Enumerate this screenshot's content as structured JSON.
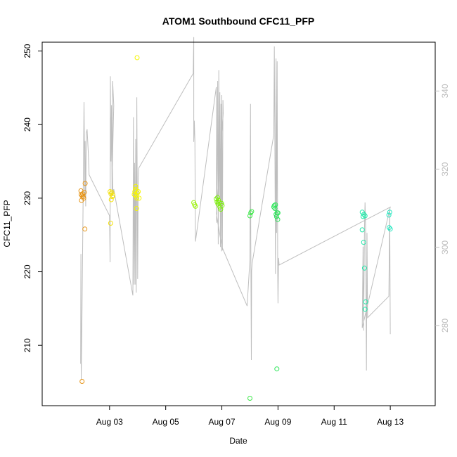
{
  "chart_data": {
    "type": "scatter",
    "title": "ATOM1 Southbound CFC11_PFP",
    "xlabel": "Date",
    "ylabel": "CFC11_PFP",
    "xlim": [
      0.6,
      14.6
    ],
    "ylim": [
      201.8,
      251.2
    ],
    "y2lim": [
      259.5,
      352.5
    ],
    "x_ticks": [
      {
        "v": 3,
        "label": "Aug 03"
      },
      {
        "v": 5,
        "label": "Aug 05"
      },
      {
        "v": 7,
        "label": "Aug 07"
      },
      {
        "v": 9,
        "label": "Aug 09"
      },
      {
        "v": 11,
        "label": "Aug 11"
      },
      {
        "v": 13,
        "label": "Aug 13"
      }
    ],
    "y_ticks": [
      210,
      220,
      230,
      240,
      250
    ],
    "y2_ticks": [
      280,
      300,
      320,
      340
    ],
    "grid": false,
    "legend": "none",
    "line_color": "#bebebe",
    "series": [
      {
        "values": [
          {
            "x": 1.98,
            "y": 231.0,
            "color": "#e69519"
          },
          {
            "x": 1.99,
            "y": 230.5,
            "color": "#e69519"
          },
          {
            "x": 2.0,
            "y": 229.7,
            "color": "#e69519"
          },
          {
            "x": 2.02,
            "y": 230.3,
            "color": "#e69519"
          },
          {
            "x": 2.04,
            "y": 230.6,
            "color": "#e69519"
          },
          {
            "x": 2.06,
            "y": 230.2,
            "color": "#e69519"
          },
          {
            "x": 2.08,
            "y": 230.0,
            "color": "#e69519"
          },
          {
            "x": 2.1,
            "y": 230.8,
            "color": "#e69519"
          },
          {
            "x": 2.13,
            "y": 232.0,
            "color": "#e69519"
          },
          {
            "x": 2.12,
            "y": 225.8,
            "color": "#e69519"
          },
          {
            "x": 2.02,
            "y": 205.1,
            "color": "#e69519"
          },
          {
            "x": 3.02,
            "y": 230.9,
            "color": "#f5e20b"
          },
          {
            "x": 3.05,
            "y": 230.6,
            "color": "#f5e20b"
          },
          {
            "x": 3.08,
            "y": 230.8,
            "color": "#f5e20b"
          },
          {
            "x": 3.1,
            "y": 230.2,
            "color": "#f5e20b"
          },
          {
            "x": 3.06,
            "y": 229.8,
            "color": "#f5e20b"
          },
          {
            "x": 3.12,
            "y": 230.4,
            "color": "#f5e20b"
          },
          {
            "x": 3.04,
            "y": 226.6,
            "color": "#f5e20b"
          },
          {
            "x": 3.88,
            "y": 230.5,
            "color": "#f5f500"
          },
          {
            "x": 3.9,
            "y": 230.9,
            "color": "#f5f500"
          },
          {
            "x": 3.92,
            "y": 231.2,
            "color": "#f5f500"
          },
          {
            "x": 3.95,
            "y": 230.3,
            "color": "#f5f500"
          },
          {
            "x": 3.97,
            "y": 230.0,
            "color": "#f5f500"
          },
          {
            "x": 3.99,
            "y": 230.7,
            "color": "#f5f500"
          },
          {
            "x": 4.02,
            "y": 230.9,
            "color": "#f5f500"
          },
          {
            "x": 4.05,
            "y": 230.0,
            "color": "#f5f500"
          },
          {
            "x": 3.93,
            "y": 231.6,
            "color": "#f5f500"
          },
          {
            "x": 3.96,
            "y": 228.6,
            "color": "#f5f500"
          },
          {
            "x": 3.98,
            "y": 249.1,
            "color": "#f5f500"
          },
          {
            "x": 6.0,
            "y": 229.4,
            "color": "#9ef50a"
          },
          {
            "x": 6.03,
            "y": 229.1,
            "color": "#9ef50a"
          },
          {
            "x": 6.06,
            "y": 228.9,
            "color": "#9ef50a"
          },
          {
            "x": 6.8,
            "y": 229.9,
            "color": "#7ef00c"
          },
          {
            "x": 6.83,
            "y": 229.5,
            "color": "#7ef00c"
          },
          {
            "x": 6.86,
            "y": 229.2,
            "color": "#7ef00c"
          },
          {
            "x": 6.88,
            "y": 229.7,
            "color": "#7ef00c"
          },
          {
            "x": 6.9,
            "y": 229.4,
            "color": "#7ef00c"
          },
          {
            "x": 6.93,
            "y": 228.8,
            "color": "#7ef00c"
          },
          {
            "x": 6.96,
            "y": 228.5,
            "color": "#7ef00c"
          },
          {
            "x": 6.99,
            "y": 229.3,
            "color": "#7ef00c"
          },
          {
            "x": 7.01,
            "y": 229.0,
            "color": "#7ef00c"
          },
          {
            "x": 6.85,
            "y": 230.1,
            "color": "#7ef00c"
          },
          {
            "x": 8.0,
            "y": 227.6,
            "color": "#3ee84a"
          },
          {
            "x": 8.03,
            "y": 228.0,
            "color": "#3ee84a"
          },
          {
            "x": 8.06,
            "y": 228.2,
            "color": "#3ee84a"
          },
          {
            "x": 8.0,
            "y": 202.8,
            "color": "#3ee84a"
          },
          {
            "x": 8.85,
            "y": 228.8,
            "color": "#2ee65a"
          },
          {
            "x": 8.87,
            "y": 229.0,
            "color": "#2ee65a"
          },
          {
            "x": 8.89,
            "y": 228.6,
            "color": "#2ee65a"
          },
          {
            "x": 8.91,
            "y": 229.1,
            "color": "#2ee65a"
          },
          {
            "x": 8.93,
            "y": 227.8,
            "color": "#2ee65a"
          },
          {
            "x": 8.95,
            "y": 227.5,
            "color": "#2ee65a"
          },
          {
            "x": 8.97,
            "y": 228.0,
            "color": "#2ee65a"
          },
          {
            "x": 8.99,
            "y": 227.1,
            "color": "#2ee65a"
          },
          {
            "x": 9.0,
            "y": 228.0,
            "color": "#2ee65a"
          },
          {
            "x": 8.96,
            "y": 206.8,
            "color": "#2ee65a"
          },
          {
            "x": 12.0,
            "y": 228.1,
            "color": "#1ee8a8"
          },
          {
            "x": 12.03,
            "y": 227.5,
            "color": "#1ee8a8"
          },
          {
            "x": 12.06,
            "y": 227.8,
            "color": "#1ee8a8"
          },
          {
            "x": 12.1,
            "y": 227.6,
            "color": "#1ee8a8"
          },
          {
            "x": 12.0,
            "y": 225.7,
            "color": "#1ee8a8"
          },
          {
            "x": 12.05,
            "y": 224.0,
            "color": "#1ee8a8"
          },
          {
            "x": 12.08,
            "y": 220.5,
            "color": "#1ee8a8"
          },
          {
            "x": 12.12,
            "y": 215.9,
            "color": "#1ee8a8"
          },
          {
            "x": 12.1,
            "y": 214.9,
            "color": "#1ee8a8"
          },
          {
            "x": 12.95,
            "y": 227.7,
            "color": "#22e8c0"
          },
          {
            "x": 12.98,
            "y": 228.1,
            "color": "#22e8c0"
          },
          {
            "x": 12.96,
            "y": 226.0,
            "color": "#22e8c0"
          },
          {
            "x": 13.0,
            "y": 225.8,
            "color": "#22e8c0"
          }
        ]
      }
    ],
    "line_trace": [
      [
        1.97,
        270.2
      ],
      [
        1.98,
        298.3
      ],
      [
        1.99,
        266.1
      ],
      [
        2.02,
        284.1
      ],
      [
        2.06,
        313.7
      ],
      [
        2.09,
        337.2
      ],
      [
        2.12,
        313.2
      ],
      [
        2.13,
        327.2
      ],
      [
        2.15,
        310.5
      ],
      [
        2.17,
        329.3
      ],
      [
        2.2,
        330.2
      ],
      [
        2.24,
        324.6
      ],
      [
        2.27,
        318.6
      ],
      [
        3.0,
        308.1
      ],
      [
        3.02,
        296.2
      ],
      [
        3.03,
        343.8
      ],
      [
        3.05,
        322.0
      ],
      [
        3.07,
        336.4
      ],
      [
        3.09,
        313.2
      ],
      [
        3.11,
        342.6
      ],
      [
        3.15,
        336.4
      ],
      [
        3.1,
        320.5
      ],
      [
        3.12,
        313.1
      ],
      [
        3.15,
        314.9
      ],
      [
        3.83,
        287.7
      ],
      [
        3.85,
        333.3
      ],
      [
        3.87,
        290.5
      ],
      [
        3.89,
        321.6
      ],
      [
        3.91,
        290.5
      ],
      [
        3.93,
        327.7
      ],
      [
        3.95,
        288.4
      ],
      [
        3.97,
        338.4
      ],
      [
        4.0,
        291.9
      ],
      [
        4.02,
        317.8
      ],
      [
        4.04,
        320.3
      ],
      [
        5.98,
        344.5
      ],
      [
        6.0,
        353.8
      ],
      [
        6.0,
        327.0
      ],
      [
        6.02,
        332.4
      ],
      [
        6.04,
        327.3
      ],
      [
        6.06,
        301.5
      ],
      [
        6.8,
        341.0
      ],
      [
        6.81,
        306.3
      ],
      [
        6.83,
        319.4
      ],
      [
        6.85,
        342.6
      ],
      [
        6.87,
        300.8
      ],
      [
        6.89,
        345.3
      ],
      [
        6.91,
        313.3
      ],
      [
        6.93,
        339.7
      ],
      [
        6.95,
        300.1
      ],
      [
        6.97,
        336.7
      ],
      [
        6.99,
        299.0
      ],
      [
        7.0,
        339.0
      ],
      [
        7.02,
        299.2
      ],
      [
        7.04,
        337.7
      ],
      [
        7.05,
        334.3
      ],
      [
        6.8,
        308.6
      ],
      [
        7.0,
        300.2
      ],
      [
        7.9,
        285.0
      ],
      [
        8.0,
        297.0
      ],
      [
        8.02,
        336.7
      ],
      [
        8.03,
        301.5
      ],
      [
        8.05,
        271.2
      ],
      [
        8.06,
        294.0
      ],
      [
        8.08,
        296.0
      ],
      [
        8.85,
        328.8
      ],
      [
        8.87,
        351.4
      ],
      [
        8.89,
        325.3
      ],
      [
        8.91,
        293.2
      ],
      [
        8.93,
        348.3
      ],
      [
        8.95,
        303.7
      ],
      [
        8.97,
        347.6
      ],
      [
        8.99,
        293.8
      ],
      [
        9.0,
        285.7
      ],
      [
        9.02,
        297.3
      ],
      [
        9.04,
        295.5
      ],
      [
        13.0,
        310.3
      ],
      [
        12.0,
        279.4
      ],
      [
        12.03,
        300.2
      ],
      [
        12.05,
        278.7
      ],
      [
        12.08,
        304.5
      ],
      [
        12.1,
        311.5
      ],
      [
        12.12,
        305.0
      ],
      [
        12.15,
        268.5
      ],
      [
        12.17,
        303.7
      ],
      [
        12.19,
        282.0
      ],
      [
        12.95,
        287.5
      ],
      [
        12.98,
        310.0
      ],
      [
        13.0,
        277.8
      ]
    ]
  }
}
